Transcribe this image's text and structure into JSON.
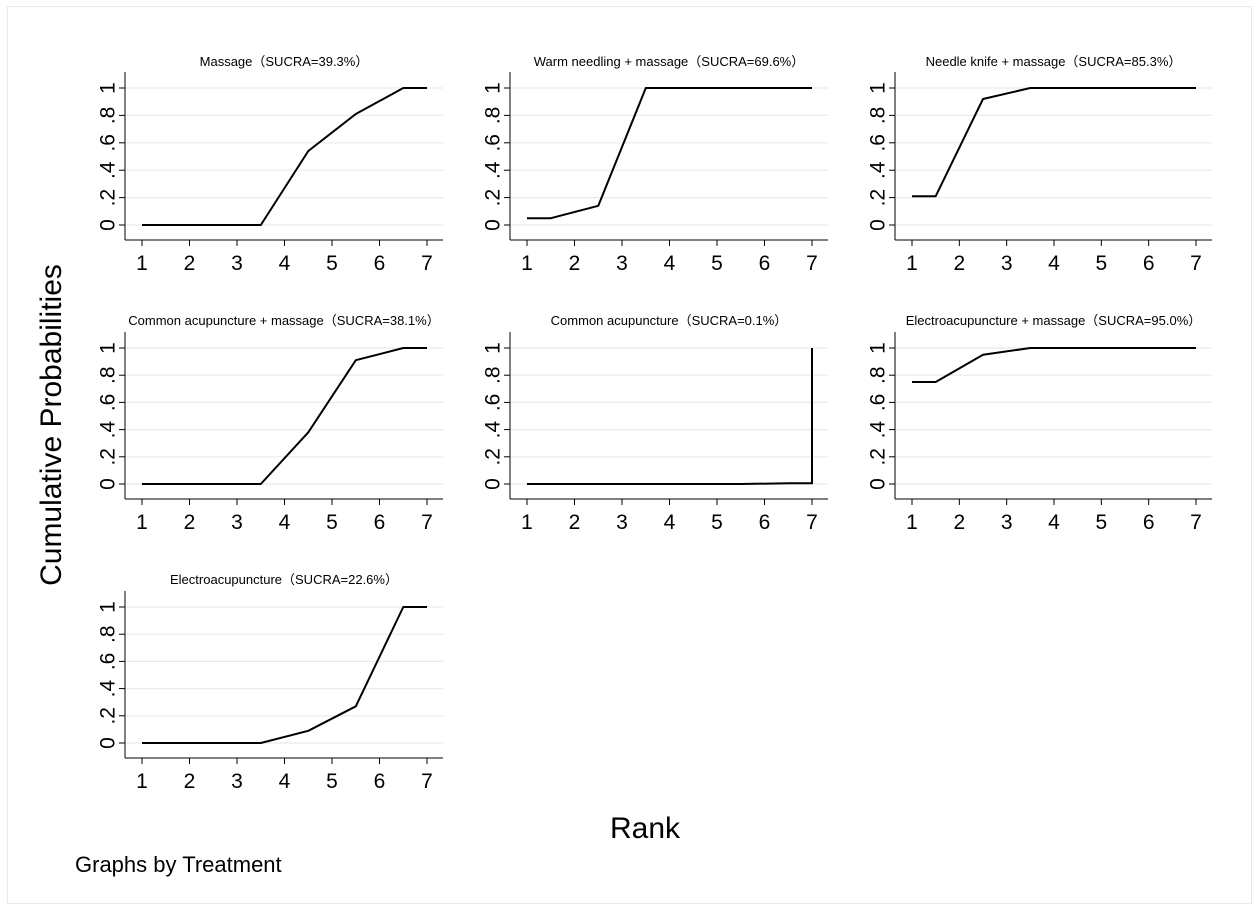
{
  "figure": {
    "ylabel": "Cumulative Probabilities",
    "xlabel": "Rank",
    "note": "Graphs by Treatment"
  },
  "chart_data": {
    "type": "line",
    "x_ticks": [
      1,
      2,
      3,
      4,
      5,
      6,
      7
    ],
    "y_ticks": [
      "0",
      ".2",
      ".4",
      ".6",
      ".8",
      "1"
    ],
    "y_tick_values": [
      0,
      0.2,
      0.4,
      0.6,
      0.8,
      1
    ],
    "xlim": [
      1,
      7
    ],
    "ylim": [
      0,
      1
    ],
    "grid": true,
    "line_color": "#000000",
    "grid_color": "#e3ecef",
    "panels": [
      {
        "title": "Massage（SUCRA=39.3%）",
        "x": [
          1,
          1.5,
          2.5,
          3.5,
          4.5,
          5.5,
          6.5,
          7
        ],
        "y": [
          0,
          0,
          0,
          0,
          0.54,
          0.81,
          1.0,
          1.0
        ]
      },
      {
        "title": "Warm needling + massage（SUCRA=69.6%）",
        "x": [
          1,
          1.5,
          2.5,
          3.5,
          4.5,
          5.5,
          6.5,
          7
        ],
        "y": [
          0.05,
          0.05,
          0.14,
          1.0,
          1.0,
          1.0,
          1.0,
          1.0
        ]
      },
      {
        "title": "Needle knife + massage（SUCRA=85.3%）",
        "x": [
          1,
          1.5,
          2.5,
          3.5,
          4.5,
          5.5,
          6.5,
          7
        ],
        "y": [
          0.21,
          0.21,
          0.92,
          1.0,
          1.0,
          1.0,
          1.0,
          1.0
        ]
      },
      {
        "title": "Common acupuncture + massage（SUCRA=38.1%）",
        "x": [
          1,
          1.5,
          2.5,
          3.5,
          4.5,
          5.5,
          6.5,
          7
        ],
        "y": [
          0,
          0,
          0,
          0,
          0.38,
          0.91,
          1.0,
          1.0
        ]
      },
      {
        "title": "Common acupuncture（SUCRA=0.1%）",
        "x": [
          1,
          1.5,
          2.5,
          3.5,
          4.5,
          5.5,
          6.5,
          7,
          7
        ],
        "y": [
          0,
          0,
          0,
          0,
          0,
          0,
          0.005,
          0.005,
          1.0
        ]
      },
      {
        "title": "Electroacupuncture + massage（SUCRA=95.0%）",
        "x": [
          1,
          1.5,
          2.5,
          3.5,
          4.5,
          5.5,
          6.5,
          7
        ],
        "y": [
          0.75,
          0.75,
          0.95,
          1.0,
          1.0,
          1.0,
          1.0,
          1.0
        ]
      },
      {
        "title": "Electroacupuncture（SUCRA=22.6%）",
        "x": [
          1,
          1.5,
          2.5,
          3.5,
          4.5,
          5.5,
          6.5,
          7
        ],
        "y": [
          0,
          0,
          0,
          0,
          0.09,
          0.27,
          1.0,
          1.0
        ]
      }
    ]
  }
}
